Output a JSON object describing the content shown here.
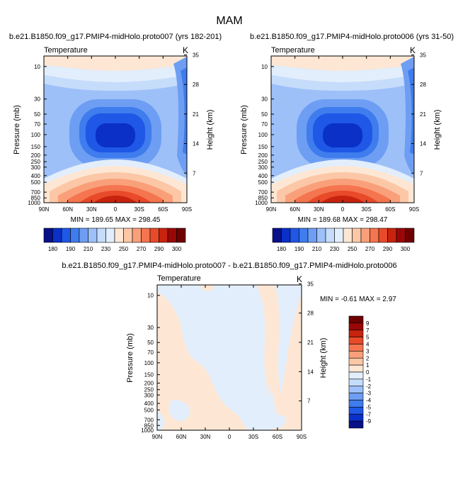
{
  "page_title": "MAM",
  "colors": {
    "div": [
      "#08108a",
      "#0a30c8",
      "#1f57e6",
      "#3f7ced",
      "#6d9ef3",
      "#9dc0f8",
      "#c6dcfb",
      "#e3eefc",
      "#fde7d4",
      "#fcc7a6",
      "#f9a07a",
      "#f4754f",
      "#e84a2a",
      "#c8230f",
      "#9a0707",
      "#6e0000"
    ]
  },
  "chart_data": [
    {
      "id": "proto007",
      "type": "contour",
      "title": "b.e21.B1850.f09_g17.PMIP4-midHolo.proto007 (yrs 182-201)",
      "left_label": "Temperature",
      "right_label": "K",
      "ylabel": "Pressure (mb)",
      "ylabel_right": "Height (km)",
      "x_ticks": [
        "90N",
        "60N",
        "30N",
        "0",
        "30S",
        "60S",
        "90S"
      ],
      "y_ticks": [
        "10",
        "30",
        "50",
        "70",
        "100",
        "150",
        "200",
        "250",
        "300",
        "400",
        "500",
        "700",
        "850",
        "1000"
      ],
      "y_ticks_right": [
        "35",
        "28",
        "21",
        "14",
        "7"
      ],
      "min": 189.65,
      "max": 298.45,
      "stats_text": "MIN = 189.65   MAX = 298.45",
      "colorbar_labels": [
        "180",
        "190",
        "210",
        "230",
        "250",
        "270",
        "290",
        "300"
      ]
    },
    {
      "id": "proto006",
      "type": "contour",
      "title": "b.e21.B1850.f09_g17.PMIP4-midHolo.proto006 (yrs 31-50)",
      "left_label": "Temperature",
      "right_label": "K",
      "ylabel": "Pressure (mb)",
      "ylabel_right": "Height (km)",
      "x_ticks": [
        "90N",
        "60N",
        "30N",
        "0",
        "30S",
        "60S",
        "90S"
      ],
      "y_ticks": [
        "10",
        "30",
        "50",
        "70",
        "100",
        "150",
        "200",
        "250",
        "300",
        "400",
        "500",
        "700",
        "850",
        "1000"
      ],
      "y_ticks_right": [
        "35",
        "28",
        "21",
        "14",
        "7"
      ],
      "min": 189.68,
      "max": 298.47,
      "stats_text": "MIN = 189.68   MAX = 298.47",
      "colorbar_labels": [
        "180",
        "190",
        "210",
        "230",
        "250",
        "270",
        "290",
        "300"
      ]
    },
    {
      "id": "difference",
      "type": "contour",
      "title": "b.e21.B1850.f09_g17.PMIP4-midHolo.proto007 - b.e21.B1850.f09_g17.PMIP4-midHolo.proto006",
      "left_label": "Temperature",
      "right_label": "K",
      "ylabel": "Pressure (mb)",
      "ylabel_right": "Height (km)",
      "x_ticks": [
        "90N",
        "60N",
        "30N",
        "0",
        "30S",
        "60S",
        "90S"
      ],
      "y_ticks": [
        "10",
        "30",
        "50",
        "70",
        "100",
        "150",
        "200",
        "250",
        "300",
        "400",
        "500",
        "700",
        "850",
        "1000"
      ],
      "y_ticks_right": [
        "35",
        "28",
        "21",
        "14",
        "7"
      ],
      "min": -0.61,
      "max": 2.97,
      "stats_text": "MIN =  -0.61   MAX =   2.97",
      "colorbar_labels": [
        "9",
        "7",
        "5",
        "4",
        "3",
        "2",
        "1",
        "0",
        "-1",
        "-2",
        "-3",
        "-4",
        "-5",
        "-7",
        "-9"
      ]
    }
  ]
}
